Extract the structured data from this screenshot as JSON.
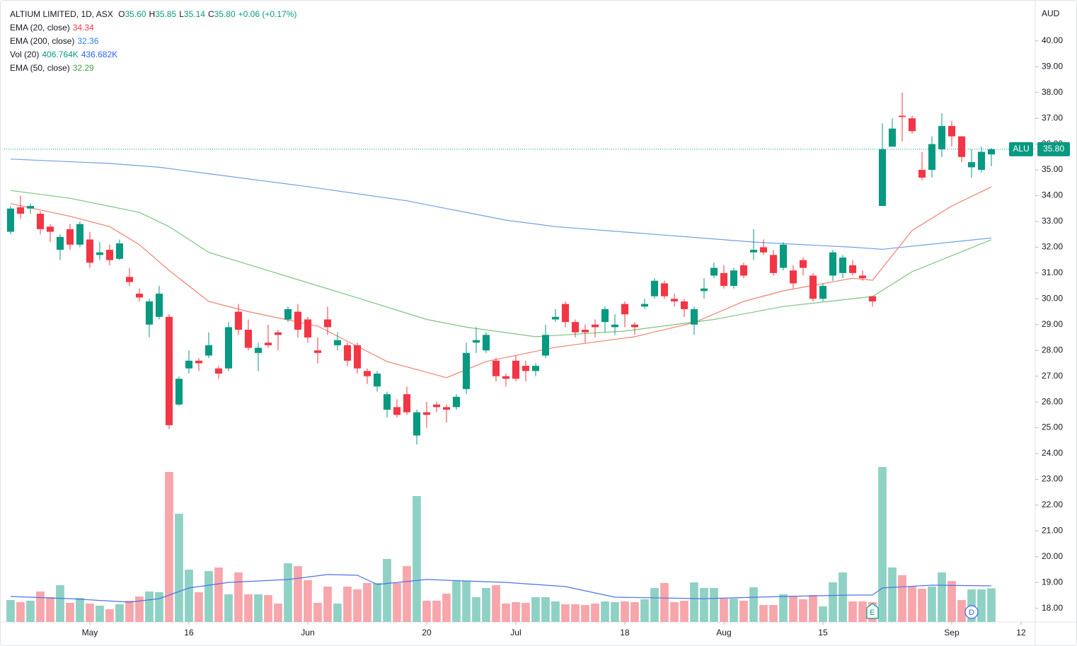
{
  "chart_data": {
    "type": "candlestick",
    "currency": "AUD",
    "legend": {
      "title": "ALTIUM LIMITED, 1D, ASX",
      "ohlc": [
        {
          "key": "O",
          "value": "35.60"
        },
        {
          "key": "H",
          "value": "35.85"
        },
        {
          "key": "L",
          "value": "35.14"
        },
        {
          "key": "C",
          "value": "35.80"
        }
      ],
      "change": "+0.06 (+0.17%)",
      "color": "#089981"
    },
    "up_color": "#089981",
    "down_color": "#f23645",
    "volume_up_color": "#8fd1c5",
    "volume_down_color": "#f7a6ab",
    "xlim": [
      -0.64,
      103.43
    ],
    "ylim": [
      17.47,
      41.34
    ],
    "y2lim": [
      0,
      7450
    ],
    "yticks": [
      {
        "value": 18,
        "label": "18.00"
      },
      {
        "value": 19,
        "label": "19.00"
      },
      {
        "value": 20,
        "label": "20.00"
      },
      {
        "value": 21,
        "label": "21.00"
      },
      {
        "value": 22,
        "label": "22.00"
      },
      {
        "value": 23,
        "label": "23.00"
      },
      {
        "value": 24,
        "label": "24.00"
      },
      {
        "value": 25,
        "label": "25.00"
      },
      {
        "value": 26,
        "label": "26.00"
      },
      {
        "value": 27,
        "label": "27.00"
      },
      {
        "value": 28,
        "label": "28.00"
      },
      {
        "value": 29,
        "label": "29.00"
      },
      {
        "value": 30,
        "label": "30.00"
      },
      {
        "value": 31,
        "label": "31.00"
      },
      {
        "value": 32,
        "label": "32.00"
      },
      {
        "value": 33,
        "label": "33.00"
      },
      {
        "value": 34,
        "label": "34.00"
      },
      {
        "value": 35,
        "label": "35.00"
      },
      {
        "value": 36,
        "label": "36.00"
      },
      {
        "value": 37,
        "label": "37.00"
      },
      {
        "value": 38,
        "label": "38.00"
      },
      {
        "value": 39,
        "label": "39.00"
      },
      {
        "value": 40,
        "label": "40.00"
      }
    ],
    "xticks": [
      {
        "value": 8,
        "label": "May"
      },
      {
        "value": 18,
        "label": "16"
      },
      {
        "value": 30,
        "label": "Jun"
      },
      {
        "value": 42,
        "label": "20"
      },
      {
        "value": 51,
        "label": "Jul"
      },
      {
        "value": 62,
        "label": "18"
      },
      {
        "value": 72,
        "label": "Aug"
      },
      {
        "value": 82,
        "label": "15"
      },
      {
        "value": 95,
        "label": "Sep"
      },
      {
        "value": 102,
        "label": "12"
      }
    ],
    "open": [
      32.6,
      33.55,
      33.5,
      33.3,
      32.8,
      31.9,
      32.7,
      32.1,
      32.3,
      31.7,
      31.9,
      31.55,
      30.85,
      30.2,
      29.0,
      29.3,
      29.3,
      25.9,
      27.3,
      27.6,
      27.8,
      27.3,
      27.3,
      29.5,
      28.8,
      27.9,
      28.3,
      28.7,
      29.2,
      29.5,
      29.2,
      28.0,
      29.2,
      28.2,
      28.2,
      28.2,
      27.2,
      26.6,
      25.7,
      25.8,
      26.3,
      24.7,
      25.6,
      25.9,
      25.8,
      25.8,
      26.5,
      28.3,
      28.0,
      27.6,
      27.0,
      27.6,
      27.4,
      27.2,
      27.8,
      29.2,
      29.8,
      29.1,
      28.8,
      29.0,
      29.1,
      28.9,
      29.8,
      29.0,
      29.7,
      30.1,
      30.6,
      30.0,
      29.9,
      29.0,
      30.3,
      30.9,
      31.0,
      30.5,
      31.3,
      31.8,
      32.0,
      31.7,
      31.2,
      31.1,
      31.5,
      30.9,
      30.0,
      30.9,
      31.0,
      31.3,
      30.9,
      30.1,
      33.6,
      35.9,
      37.1,
      37.0,
      35.0,
      35.0,
      35.8,
      36.7,
      36.3,
      35.1,
      35.0,
      35.6
    ],
    "high": [
      33.6,
      34.0,
      33.7,
      33.4,
      32.9,
      32.5,
      32.9,
      33.0,
      32.6,
      32.2,
      32.1,
      32.3,
      31.2,
      30.4,
      30.0,
      30.5,
      29.4,
      27.0,
      28.0,
      27.7,
      28.7,
      27.4,
      29.1,
      29.8,
      29.2,
      28.3,
      29.0,
      28.8,
      29.7,
      29.8,
      29.3,
      28.5,
      29.7,
      28.7,
      28.3,
      28.3,
      27.3,
      27.2,
      26.4,
      26.1,
      26.6,
      25.7,
      26.0,
      26.0,
      25.9,
      26.3,
      28.3,
      28.9,
      28.7,
      27.7,
      27.1,
      27.8,
      27.6,
      27.5,
      29.0,
      29.6,
      29.9,
      29.2,
      29.0,
      29.2,
      29.7,
      29.4,
      29.9,
      29.1,
      30.0,
      30.8,
      30.7,
      30.2,
      30.0,
      29.7,
      30.8,
      31.4,
      31.3,
      31.2,
      31.4,
      32.7,
      32.3,
      31.9,
      32.2,
      31.3,
      31.6,
      31.0,
      30.6,
      31.9,
      31.7,
      31.5,
      31.1,
      30.1,
      36.8,
      37.0,
      38.0,
      37.1,
      35.7,
      36.3,
      37.2,
      36.9,
      36.3,
      35.8,
      35.9,
      35.85
    ],
    "low": [
      32.5,
      33.1,
      33.3,
      32.5,
      32.2,
      31.5,
      31.9,
      32.0,
      31.2,
      31.5,
      31.3,
      31.5,
      30.5,
      29.9,
      28.5,
      29.2,
      24.95,
      25.85,
      27.1,
      27.2,
      27.7,
      26.9,
      27.2,
      28.6,
      28.0,
      27.2,
      28.1,
      28.0,
      29.1,
      28.5,
      28.3,
      27.5,
      28.6,
      28.0,
      27.4,
      27.1,
      26.7,
      26.4,
      25.4,
      25.4,
      25.5,
      24.35,
      25.0,
      25.6,
      25.2,
      25.7,
      26.3,
      27.9,
      27.9,
      26.8,
      26.6,
      26.8,
      26.8,
      27.0,
      27.7,
      29.1,
      28.9,
      28.5,
      28.3,
      28.5,
      28.7,
      28.6,
      28.9,
      28.6,
      29.6,
      30.0,
      30.0,
      29.7,
      29.3,
      28.6,
      30.0,
      30.8,
      30.4,
      30.4,
      30.8,
      31.5,
      31.7,
      30.9,
      31.1,
      30.4,
      30.9,
      29.9,
      29.9,
      30.7,
      30.8,
      30.9,
      30.7,
      29.7,
      33.6,
      35.9,
      36.1,
      36.4,
      34.6,
      34.7,
      35.5,
      35.9,
      35.3,
      34.7,
      34.9,
      35.14
    ],
    "close": [
      33.5,
      33.3,
      33.6,
      32.7,
      32.6,
      32.4,
      32.1,
      32.9,
      31.4,
      31.8,
      31.5,
      32.15,
      30.65,
      30.05,
      29.9,
      30.2,
      25.1,
      26.9,
      27.6,
      27.5,
      28.2,
      27.1,
      28.9,
      28.8,
      28.1,
      28.1,
      28.2,
      28.6,
      29.6,
      28.8,
      28.5,
      27.9,
      28.9,
      28.4,
      27.6,
      27.3,
      27.0,
      27.1,
      26.3,
      25.5,
      25.6,
      25.6,
      25.5,
      25.8,
      25.7,
      26.2,
      27.9,
      28.4,
      28.6,
      27.0,
      26.9,
      26.9,
      27.2,
      27.4,
      28.6,
      29.3,
      29.1,
      28.7,
      28.7,
      28.9,
      29.6,
      29.0,
      29.4,
      28.9,
      29.8,
      30.7,
      30.1,
      29.9,
      29.6,
      29.6,
      30.4,
      31.2,
      30.5,
      31.1,
      30.9,
      31.9,
      31.8,
      31.0,
      32.1,
      30.6,
      31.2,
      30.0,
      30.5,
      31.8,
      31.6,
      31.0,
      30.8,
      29.9,
      35.8,
      36.6,
      37.05,
      36.5,
      34.7,
      36.0,
      36.7,
      36.3,
      35.5,
      35.3,
      35.7,
      35.8
    ],
    "volume": [
      265,
      240,
      257,
      368,
      300,
      445,
      231,
      291,
      223,
      197,
      154,
      214,
      257,
      308,
      368,
      360,
      1815,
      1310,
      633,
      360,
      616,
      659,
      334,
      599,
      334,
      334,
      325,
      223,
      710,
      676,
      505,
      231,
      428,
      223,
      428,
      394,
      471,
      471,
      762,
      471,
      676,
      1524,
      257,
      257,
      342,
      496,
      496,
      300,
      411,
      445,
      223,
      240,
      231,
      300,
      300,
      248,
      214,
      214,
      205,
      223,
      248,
      240,
      248,
      240,
      274,
      411,
      471,
      240,
      257,
      479,
      411,
      411,
      282,
      282,
      257,
      419,
      205,
      205,
      334,
      317,
      274,
      325,
      188,
      479,
      599,
      248,
      248,
      240,
      1875,
      659,
      565,
      428,
      402,
      428,
      599,
      496,
      265,
      394,
      394,
      406.764
    ],
    "indicators": [
      {
        "name": "EMA (20, close)",
        "readout": [
          "34.34"
        ],
        "readout_colors": [
          "#f23645"
        ],
        "color": "#f0806f",
        "x": [
          0,
          6,
          10,
          13,
          16,
          20,
          24,
          31,
          38,
          44,
          48,
          55,
          63,
          69,
          74,
          78,
          85,
          87,
          91,
          95,
          99
        ],
        "values": [
          33.69,
          33.2,
          32.8,
          32.1,
          31.1,
          29.9,
          29.5,
          28.94,
          27.57,
          26.94,
          27.57,
          28.12,
          28.53,
          29.08,
          29.9,
          30.31,
          30.8,
          30.72,
          32.65,
          33.6,
          34.34
        ]
      },
      {
        "name": "EMA (200, close)",
        "readout": [
          "32.36"
        ],
        "readout_colors": [
          "#2f7fe0"
        ],
        "color": "#6fa0e8",
        "x": [
          0,
          10,
          15,
          20,
          30,
          40,
          50,
          55,
          65,
          75,
          85,
          88,
          92,
          99
        ],
        "values": [
          35.42,
          35.25,
          35.1,
          34.85,
          34.35,
          33.8,
          33.05,
          32.8,
          32.5,
          32.2,
          32.0,
          31.92,
          32.08,
          32.36
        ]
      },
      {
        "name": "Vol (20)",
        "readout": [
          "406.764K",
          "436.682K"
        ],
        "readout_colors": [
          "#089981",
          "#2962ff"
        ],
        "color": "#4f72e8",
        "axis": "y2",
        "x": [
          0,
          6,
          12,
          15,
          18,
          22,
          28,
          32,
          35,
          37,
          42,
          46,
          50,
          56,
          61,
          70,
          78,
          85,
          87,
          88,
          93,
          99
        ],
        "values": [
          308,
          282,
          240,
          282,
          411,
          479,
          514,
          574,
          565,
          454,
          514,
          496,
          479,
          428,
          300,
          282,
          308,
          325,
          325,
          411,
          445,
          436.682
        ]
      },
      {
        "name": "EMA (50, close)",
        "readout": [
          "32.29"
        ],
        "readout_colors": [
          "#43a047"
        ],
        "color": "#7cc47f",
        "x": [
          0,
          6,
          13,
          16,
          20,
          28,
          35,
          42,
          46,
          53,
          62,
          71,
          78,
          87,
          91,
          99
        ],
        "values": [
          34.2,
          33.9,
          33.35,
          32.8,
          31.8,
          30.86,
          30.04,
          29.2,
          28.9,
          28.53,
          28.75,
          29.2,
          29.7,
          30.09,
          31.05,
          32.29
        ]
      }
    ],
    "last_price": {
      "symbol": "ALU",
      "value": 35.8,
      "label": "35.80"
    },
    "events": [
      {
        "label": "E",
        "x": 87,
        "color": "#089981"
      },
      {
        "label": "D",
        "x": 97,
        "color": "#2962ff"
      }
    ]
  }
}
